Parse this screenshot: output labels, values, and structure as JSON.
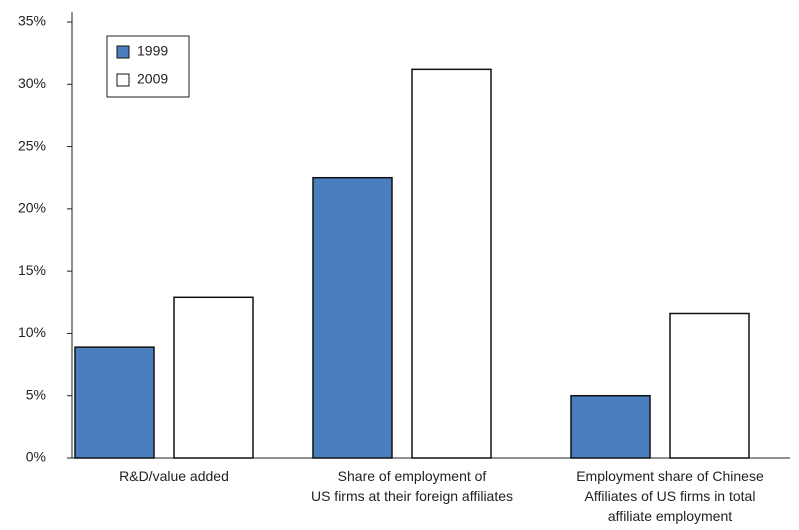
{
  "chart_data": {
    "type": "bar",
    "categories": [
      "R&D/value added",
      "Share of employment of\nUS firms at their foreign affiliates",
      "Employment share of Chinese\nAffiliates of US firms in total\naffiliate employment"
    ],
    "series": [
      {
        "name": "1999",
        "color": "#4a7fbf",
        "values": [
          8.9,
          22.5,
          5.0
        ]
      },
      {
        "name": "2009",
        "color": "#ffffff",
        "values": [
          12.9,
          31.2,
          11.6
        ]
      }
    ],
    "ylim": [
      0,
      35
    ],
    "yticks": [
      {
        "value": 0,
        "label": "0%"
      },
      {
        "value": 5,
        "label": "5%"
      },
      {
        "value": 10,
        "label": "10%"
      },
      {
        "value": 15,
        "label": "15%"
      },
      {
        "value": 20,
        "label": "20%"
      },
      {
        "value": 25,
        "label": "25%"
      },
      {
        "value": 30,
        "label": "30%"
      },
      {
        "value": 35,
        "label": "35%"
      }
    ],
    "legend": "upper-left"
  }
}
